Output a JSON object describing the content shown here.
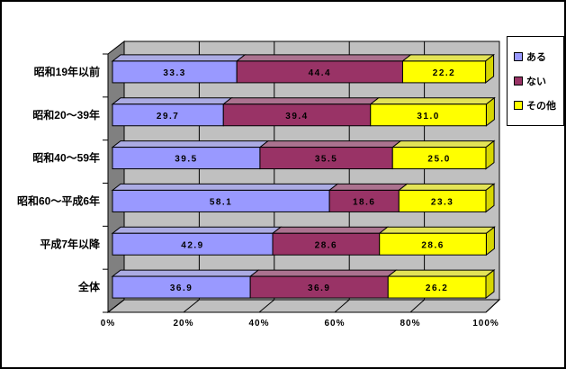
{
  "window": {
    "background": "#FFFFFF",
    "frame_color": "#000000"
  },
  "chart_data": {
    "type": "bar",
    "orientation": "horizontal",
    "stacked": true,
    "style": "3d",
    "unit": "%",
    "categories": [
      "昭和19年以前",
      "昭和20〜39年",
      "昭和40〜59年",
      "昭和60〜平成6年",
      "平成7年以降",
      "全体"
    ],
    "series": [
      {
        "name": "ある",
        "color": "#9999FF",
        "values": [
          33.3,
          29.7,
          39.5,
          58.1,
          42.9,
          36.9
        ]
      },
      {
        "name": "ない",
        "color": "#993366",
        "values": [
          44.4,
          39.4,
          35.5,
          18.6,
          28.6,
          36.9
        ]
      },
      {
        "name": "その他",
        "color": "#FFFF00",
        "values": [
          22.2,
          31.0,
          25.0,
          23.3,
          28.6,
          26.2
        ]
      }
    ],
    "x_ticks": [
      "0%",
      "20%",
      "40%",
      "60%",
      "80%",
      "100%"
    ],
    "xlim": [
      0,
      100
    ],
    "data_labels": true,
    "grid": true,
    "legend_position": "right",
    "plot_bg": "#C0C0C0",
    "wall_color": "#808080",
    "gridline_color": "#000000",
    "text_color": "#000000",
    "dither_mix": "#C0C0C0"
  }
}
